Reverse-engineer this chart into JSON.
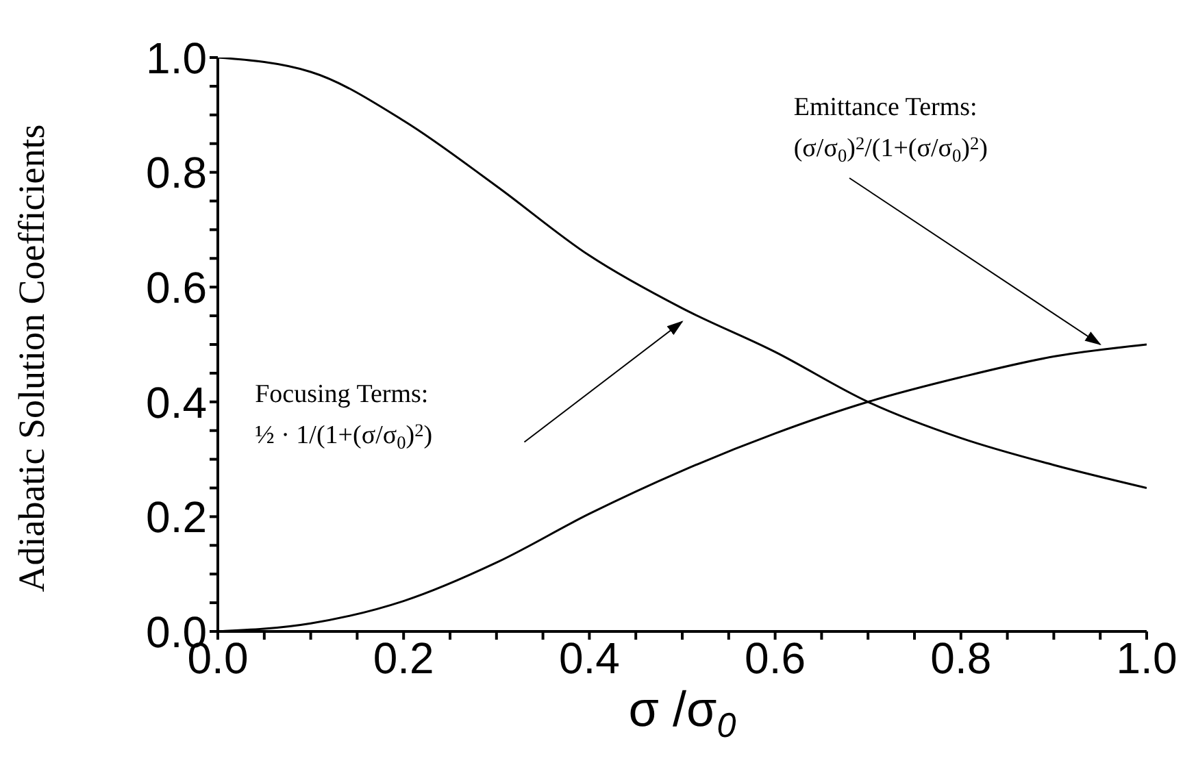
{
  "chart_data": {
    "type": "line",
    "xlabel": "σ /σ$_{0}$",
    "ylabel": "Adiabatic Solution Coefficients",
    "x": [
      0,
      0.1,
      0.2,
      0.3,
      0.4,
      0.5,
      0.6,
      0.7,
      0.8,
      0.9,
      1.0
    ],
    "series": [
      {
        "color": "#000000",
        "values": [
          1.0,
          0.975,
          0.89,
          0.776,
          0.655,
          0.563,
          0.487,
          0.4,
          0.337,
          0.29,
          0.25
        ]
      },
      {
        "color": "#000000",
        "values": [
          0,
          0.014,
          0.053,
          0.12,
          0.205,
          0.28,
          0.345,
          0.4,
          0.443,
          0.479,
          0.5
        ]
      }
    ],
    "xlim": [
      0,
      1.0
    ],
    "ylim": [
      0,
      1.0
    ],
    "xticks": [
      {
        "value": 0,
        "label": "0.0"
      },
      {
        "value": 0.05,
        "label": null
      },
      {
        "value": 0.1,
        "label": null
      },
      {
        "value": 0.15,
        "label": null
      },
      0.2,
      {
        "value": 0.25,
        "label": null
      },
      {
        "value": 0.3,
        "label": null
      },
      {
        "value": 0.35,
        "label": null
      },
      0.4,
      {
        "value": 0.45,
        "label": null
      },
      {
        "value": 0.5,
        "label": null
      },
      {
        "value": 0.55,
        "label": null
      },
      0.6,
      {
        "value": 0.65,
        "label": null
      },
      {
        "value": 0.7,
        "label": null
      },
      {
        "value": 0.75,
        "label": null
      },
      0.8,
      {
        "value": 0.85,
        "label": null
      },
      {
        "value": 0.9,
        "label": null
      },
      {
        "value": 0.95,
        "label": null
      },
      {
        "value": 1.0,
        "label": "1.0"
      }
    ],
    "yticks": [
      {
        "value": 0,
        "label": "0.0"
      },
      {
        "value": 0.05,
        "label": null
      },
      {
        "value": 0.1,
        "label": null
      },
      {
        "value": 0.15,
        "label": null
      },
      0.2,
      {
        "value": 0.25,
        "label": null
      },
      {
        "value": 0.3,
        "label": null
      },
      {
        "value": 0.35,
        "label": null
      },
      0.4,
      {
        "value": 0.45,
        "label": null
      },
      {
        "value": 0.5,
        "label": null
      },
      {
        "value": 0.55,
        "label": null
      },
      0.6,
      {
        "value": 0.65,
        "label": null
      },
      {
        "value": 0.7,
        "label": null
      },
      {
        "value": 0.75,
        "label": null
      },
      0.8,
      {
        "value": 0.85,
        "label": null
      },
      {
        "value": 0.9,
        "label": null
      },
      {
        "value": 0.95,
        "label": null
      },
      {
        "value": 1.0,
        "label": "1.0"
      }
    ],
    "grid": false,
    "marker": "none",
    "line_style": "solid",
    "annotations": [
      "Focusing Terms: ½ · 1/(1+(σ/σ$_{0}$)$^{2}$)",
      "Emittance Terms: (σ/σ$_{0}$)$^{2}$/(1+(σ/σ$_{0}$)$^{2}$)"
    ]
  }
}
